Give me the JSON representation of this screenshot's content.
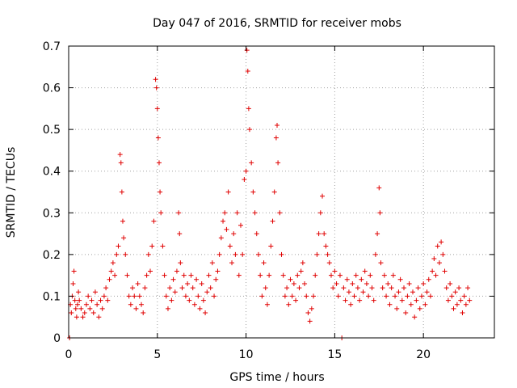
{
  "chart_data": {
    "type": "scatter",
    "title": "Day 047 of 2016, SRMTID for receiver mobs",
    "xlabel": "GPS time / hours",
    "ylabel": "SRMTID / TECUs",
    "xlim": [
      0,
      24
    ],
    "ylim": [
      0,
      0.7
    ],
    "xticks": [
      0,
      5,
      10,
      15,
      20
    ],
    "xtick_labels": [
      "0",
      "5",
      "10",
      "15",
      "20"
    ],
    "yticks": [
      0,
      0.1,
      0.2,
      0.3,
      0.4,
      0.5,
      0.6,
      0.7
    ],
    "ytick_labels": [
      "0",
      "0.1",
      "0.2",
      "0.3",
      "0.4",
      "0.5",
      "0.6",
      "0.7"
    ],
    "grid": true,
    "marker": "+",
    "color": "#e00000",
    "series": [
      {
        "name": "SRMTID",
        "points": [
          [
            0.05,
            0.0
          ],
          [
            0.1,
            0.08
          ],
          [
            0.15,
            0.06
          ],
          [
            0.2,
            0.1
          ],
          [
            0.25,
            0.13
          ],
          [
            0.3,
            0.16
          ],
          [
            0.35,
            0.09
          ],
          [
            0.4,
            0.07
          ],
          [
            0.45,
            0.05
          ],
          [
            0.5,
            0.08
          ],
          [
            0.55,
            0.11
          ],
          [
            0.6,
            0.09
          ],
          [
            0.7,
            0.07
          ],
          [
            0.8,
            0.05
          ],
          [
            0.9,
            0.06
          ],
          [
            1.0,
            0.08
          ],
          [
            1.1,
            0.1
          ],
          [
            1.2,
            0.07
          ],
          [
            1.3,
            0.09
          ],
          [
            1.4,
            0.06
          ],
          [
            1.5,
            0.11
          ],
          [
            1.6,
            0.08
          ],
          [
            1.7,
            0.05
          ],
          [
            1.8,
            0.09
          ],
          [
            1.9,
            0.07
          ],
          [
            2.0,
            0.1
          ],
          [
            2.1,
            0.12
          ],
          [
            2.2,
            0.09
          ],
          [
            2.3,
            0.14
          ],
          [
            2.4,
            0.16
          ],
          [
            2.5,
            0.18
          ],
          [
            2.6,
            0.15
          ],
          [
            2.7,
            0.2
          ],
          [
            2.8,
            0.22
          ],
          [
            2.9,
            0.44
          ],
          [
            2.95,
            0.42
          ],
          [
            3.0,
            0.35
          ],
          [
            3.05,
            0.28
          ],
          [
            3.1,
            0.24
          ],
          [
            3.2,
            0.2
          ],
          [
            3.3,
            0.15
          ],
          [
            3.4,
            0.1
          ],
          [
            3.5,
            0.08
          ],
          [
            3.6,
            0.12
          ],
          [
            3.7,
            0.1
          ],
          [
            3.8,
            0.07
          ],
          [
            3.9,
            0.13
          ],
          [
            4.0,
            0.1
          ],
          [
            4.1,
            0.08
          ],
          [
            4.2,
            0.06
          ],
          [
            4.3,
            0.12
          ],
          [
            4.4,
            0.15
          ],
          [
            4.5,
            0.2
          ],
          [
            4.6,
            0.16
          ],
          [
            4.7,
            0.22
          ],
          [
            4.8,
            0.28
          ],
          [
            4.9,
            0.62
          ],
          [
            4.95,
            0.6
          ],
          [
            5.0,
            0.55
          ],
          [
            5.05,
            0.48
          ],
          [
            5.1,
            0.42
          ],
          [
            5.15,
            0.35
          ],
          [
            5.2,
            0.3
          ],
          [
            5.3,
            0.22
          ],
          [
            5.4,
            0.15
          ],
          [
            5.5,
            0.1
          ],
          [
            5.6,
            0.07
          ],
          [
            5.7,
            0.12
          ],
          [
            5.8,
            0.09
          ],
          [
            5.9,
            0.14
          ],
          [
            6.0,
            0.11
          ],
          [
            6.1,
            0.16
          ],
          [
            6.2,
            0.3
          ],
          [
            6.25,
            0.25
          ],
          [
            6.3,
            0.18
          ],
          [
            6.4,
            0.12
          ],
          [
            6.5,
            0.15
          ],
          [
            6.6,
            0.1
          ],
          [
            6.7,
            0.13
          ],
          [
            6.8,
            0.09
          ],
          [
            6.9,
            0.15
          ],
          [
            7.0,
            0.12
          ],
          [
            7.1,
            0.08
          ],
          [
            7.2,
            0.14
          ],
          [
            7.3,
            0.1
          ],
          [
            7.4,
            0.07
          ],
          [
            7.5,
            0.13
          ],
          [
            7.6,
            0.09
          ],
          [
            7.7,
            0.06
          ],
          [
            7.8,
            0.11
          ],
          [
            7.9,
            0.15
          ],
          [
            8.0,
            0.12
          ],
          [
            8.1,
            0.18
          ],
          [
            8.2,
            0.1
          ],
          [
            8.3,
            0.14
          ],
          [
            8.4,
            0.16
          ],
          [
            8.5,
            0.2
          ],
          [
            8.6,
            0.24
          ],
          [
            8.7,
            0.28
          ],
          [
            8.8,
            0.3
          ],
          [
            8.9,
            0.26
          ],
          [
            9.0,
            0.35
          ],
          [
            9.1,
            0.22
          ],
          [
            9.2,
            0.18
          ],
          [
            9.3,
            0.25
          ],
          [
            9.4,
            0.2
          ],
          [
            9.5,
            0.3
          ],
          [
            9.6,
            0.15
          ],
          [
            9.7,
            0.27
          ],
          [
            9.8,
            0.2
          ],
          [
            9.9,
            0.38
          ],
          [
            10.0,
            0.4
          ],
          [
            10.05,
            0.69
          ],
          [
            10.1,
            0.64
          ],
          [
            10.15,
            0.55
          ],
          [
            10.2,
            0.5
          ],
          [
            10.3,
            0.42
          ],
          [
            10.4,
            0.35
          ],
          [
            10.5,
            0.3
          ],
          [
            10.6,
            0.25
          ],
          [
            10.7,
            0.2
          ],
          [
            10.8,
            0.15
          ],
          [
            10.9,
            0.1
          ],
          [
            11.0,
            0.18
          ],
          [
            11.1,
            0.12
          ],
          [
            11.2,
            0.08
          ],
          [
            11.3,
            0.15
          ],
          [
            11.4,
            0.22
          ],
          [
            11.5,
            0.28
          ],
          [
            11.6,
            0.35
          ],
          [
            11.7,
            0.48
          ],
          [
            11.75,
            0.51
          ],
          [
            11.8,
            0.42
          ],
          [
            11.9,
            0.3
          ],
          [
            12.0,
            0.2
          ],
          [
            12.1,
            0.15
          ],
          [
            12.2,
            0.1
          ],
          [
            12.3,
            0.12
          ],
          [
            12.4,
            0.08
          ],
          [
            12.5,
            0.14
          ],
          [
            12.6,
            0.1
          ],
          [
            12.7,
            0.13
          ],
          [
            12.8,
            0.09
          ],
          [
            12.9,
            0.15
          ],
          [
            13.0,
            0.12
          ],
          [
            13.1,
            0.16
          ],
          [
            13.2,
            0.18
          ],
          [
            13.3,
            0.13
          ],
          [
            13.4,
            0.1
          ],
          [
            13.5,
            0.06
          ],
          [
            13.6,
            0.04
          ],
          [
            13.7,
            0.07
          ],
          [
            13.8,
            0.1
          ],
          [
            13.9,
            0.15
          ],
          [
            14.0,
            0.2
          ],
          [
            14.1,
            0.25
          ],
          [
            14.2,
            0.3
          ],
          [
            14.3,
            0.34
          ],
          [
            14.4,
            0.25
          ],
          [
            14.5,
            0.22
          ],
          [
            14.6,
            0.2
          ],
          [
            14.7,
            0.18
          ],
          [
            14.8,
            0.15
          ],
          [
            14.9,
            0.12
          ],
          [
            15.0,
            0.16
          ],
          [
            15.1,
            0.13
          ],
          [
            15.2,
            0.1
          ],
          [
            15.3,
            0.15
          ],
          [
            15.4,
            0.0
          ],
          [
            15.5,
            0.12
          ],
          [
            15.6,
            0.09
          ],
          [
            15.7,
            0.14
          ],
          [
            15.8,
            0.11
          ],
          [
            15.9,
            0.08
          ],
          [
            16.0,
            0.13
          ],
          [
            16.1,
            0.1
          ],
          [
            16.2,
            0.15
          ],
          [
            16.3,
            0.12
          ],
          [
            16.4,
            0.09
          ],
          [
            16.5,
            0.14
          ],
          [
            16.6,
            0.11
          ],
          [
            16.7,
            0.16
          ],
          [
            16.8,
            0.13
          ],
          [
            16.9,
            0.1
          ],
          [
            17.0,
            0.15
          ],
          [
            17.1,
            0.12
          ],
          [
            17.2,
            0.09
          ],
          [
            17.3,
            0.2
          ],
          [
            17.4,
            0.25
          ],
          [
            17.5,
            0.36
          ],
          [
            17.55,
            0.3
          ],
          [
            17.6,
            0.18
          ],
          [
            17.7,
            0.12
          ],
          [
            17.8,
            0.15
          ],
          [
            17.9,
            0.1
          ],
          [
            18.0,
            0.13
          ],
          [
            18.1,
            0.08
          ],
          [
            18.2,
            0.12
          ],
          [
            18.3,
            0.15
          ],
          [
            18.4,
            0.1
          ],
          [
            18.5,
            0.07
          ],
          [
            18.6,
            0.11
          ],
          [
            18.7,
            0.14
          ],
          [
            18.8,
            0.09
          ],
          [
            18.9,
            0.12
          ],
          [
            19.0,
            0.06
          ],
          [
            19.1,
            0.1
          ],
          [
            19.2,
            0.13
          ],
          [
            19.3,
            0.08
          ],
          [
            19.4,
            0.11
          ],
          [
            19.5,
            0.05
          ],
          [
            19.6,
            0.09
          ],
          [
            19.7,
            0.12
          ],
          [
            19.8,
            0.07
          ],
          [
            19.9,
            0.1
          ],
          [
            20.0,
            0.13
          ],
          [
            20.1,
            0.08
          ],
          [
            20.2,
            0.11
          ],
          [
            20.3,
            0.14
          ],
          [
            20.4,
            0.1
          ],
          [
            20.5,
            0.16
          ],
          [
            20.6,
            0.19
          ],
          [
            20.7,
            0.15
          ],
          [
            20.8,
            0.22
          ],
          [
            20.9,
            0.18
          ],
          [
            21.0,
            0.23
          ],
          [
            21.1,
            0.2
          ],
          [
            21.2,
            0.16
          ],
          [
            21.3,
            0.12
          ],
          [
            21.4,
            0.09
          ],
          [
            21.5,
            0.13
          ],
          [
            21.6,
            0.1
          ],
          [
            21.7,
            0.07
          ],
          [
            21.8,
            0.11
          ],
          [
            21.9,
            0.08
          ],
          [
            22.0,
            0.12
          ],
          [
            22.1,
            0.09
          ],
          [
            22.2,
            0.06
          ],
          [
            22.3,
            0.1
          ],
          [
            22.4,
            0.08
          ],
          [
            22.5,
            0.12
          ],
          [
            22.6,
            0.09
          ]
        ]
      }
    ]
  }
}
